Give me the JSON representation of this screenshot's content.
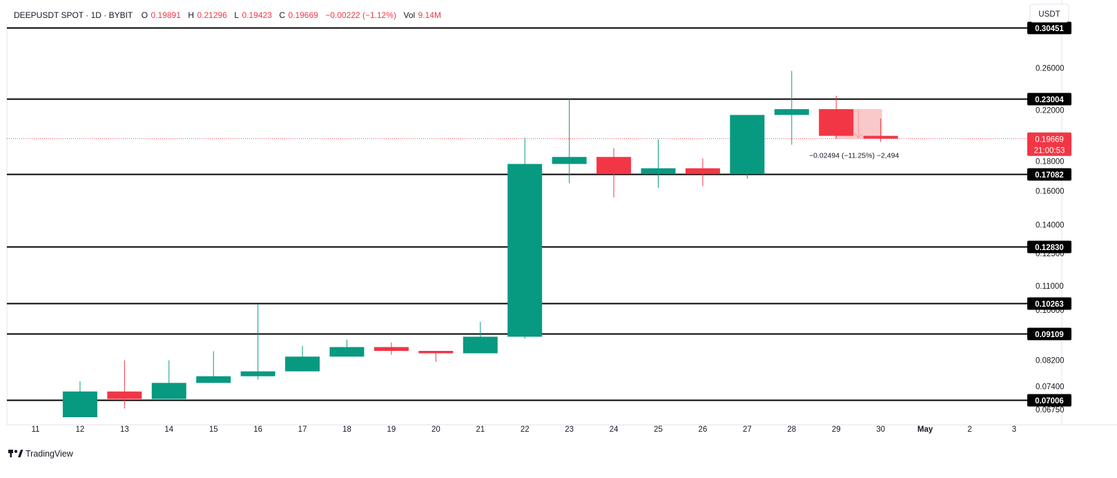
{
  "header": {
    "symbol": "DEEPUSDT SPOT · 1D · BYBIT",
    "o_label": "O",
    "o_value": "0.19891",
    "h_label": "H",
    "h_value": "0.21296",
    "l_label": "L",
    "l_value": "0.19423",
    "c_label": "C",
    "c_value": "0.19669",
    "change": "−0.00222 (−1.12%)",
    "vol_label": "Vol",
    "vol_value": "9.14M"
  },
  "currency_button": "USDT",
  "brand": "TradingView",
  "current_price": {
    "value": "0.19669",
    "countdown": "21:00:53"
  },
  "measure": {
    "text": "−0.02494 (−11.25%) −2,494"
  },
  "colors": {
    "up": "#089981",
    "down": "#f23645",
    "level": "#000000",
    "measure_fill": "#f8c3c3"
  },
  "chart_data": {
    "type": "candlestick",
    "scale": "log",
    "ylim": [
      0.0655,
      0.33
    ],
    "x_ticks": [
      "11",
      "12",
      "13",
      "14",
      "15",
      "16",
      "17",
      "18",
      "19",
      "20",
      "21",
      "22",
      "23",
      "24",
      "25",
      "26",
      "27",
      "28",
      "29",
      "30",
      "May",
      "2",
      "3"
    ],
    "y_ticks": [
      "0.26000",
      "0.22000",
      "0.18000",
      "0.16000",
      "0.14000",
      "0.12500",
      "0.11000",
      "0.10000",
      "0.08200",
      "0.07400",
      "0.06750"
    ],
    "candles": [
      {
        "day": "12",
        "o": 0.0655,
        "h": 0.0755,
        "l": 0.0655,
        "c": 0.0725
      },
      {
        "day": "13",
        "o": 0.0725,
        "h": 0.082,
        "l": 0.0678,
        "c": 0.0704
      },
      {
        "day": "14",
        "o": 0.0704,
        "h": 0.082,
        "l": 0.0704,
        "c": 0.075
      },
      {
        "day": "15",
        "o": 0.075,
        "h": 0.085,
        "l": 0.075,
        "c": 0.077
      },
      {
        "day": "16",
        "o": 0.077,
        "h": 0.1025,
        "l": 0.076,
        "c": 0.0785
      },
      {
        "day": "17",
        "o": 0.0785,
        "h": 0.0868,
        "l": 0.0785,
        "c": 0.0832
      },
      {
        "day": "18",
        "o": 0.0832,
        "h": 0.089,
        "l": 0.0832,
        "c": 0.0864
      },
      {
        "day": "19",
        "o": 0.0864,
        "h": 0.088,
        "l": 0.0838,
        "c": 0.0851
      },
      {
        "day": "20",
        "o": 0.0851,
        "h": 0.0851,
        "l": 0.0815,
        "c": 0.0843
      },
      {
        "day": "21",
        "o": 0.0843,
        "h": 0.0955,
        "l": 0.0843,
        "c": 0.09
      },
      {
        "day": "22",
        "o": 0.09,
        "h": 0.1975,
        "l": 0.0893,
        "c": 0.178
      },
      {
        "day": "23",
        "o": 0.178,
        "h": 0.23,
        "l": 0.165,
        "c": 0.183
      },
      {
        "day": "24",
        "o": 0.183,
        "h": 0.1895,
        "l": 0.156,
        "c": 0.171
      },
      {
        "day": "25",
        "o": 0.171,
        "h": 0.196,
        "l": 0.162,
        "c": 0.175
      },
      {
        "day": "26",
        "o": 0.175,
        "h": 0.182,
        "l": 0.163,
        "c": 0.171
      },
      {
        "day": "27",
        "o": 0.171,
        "h": 0.216,
        "l": 0.168,
        "c": 0.216
      },
      {
        "day": "28",
        "o": 0.216,
        "h": 0.257,
        "l": 0.192,
        "c": 0.221
      },
      {
        "day": "29",
        "o": 0.221,
        "h": 0.233,
        "l": 0.1965,
        "c": 0.1989
      },
      {
        "day": "30",
        "o": 0.1989,
        "h": 0.213,
        "l": 0.1942,
        "c": 0.1967
      }
    ],
    "levels": [
      {
        "value": 0.30451,
        "label": "0.30451"
      },
      {
        "value": 0.23004,
        "label": "0.23004"
      },
      {
        "value": 0.17082,
        "label": "0.17082"
      },
      {
        "value": 0.1283,
        "label": "0.12830"
      },
      {
        "value": 0.10263,
        "label": "0.10263"
      },
      {
        "value": 0.09109,
        "label": "0.09109"
      },
      {
        "value": 0.07006,
        "label": "0.07006"
      }
    ]
  }
}
